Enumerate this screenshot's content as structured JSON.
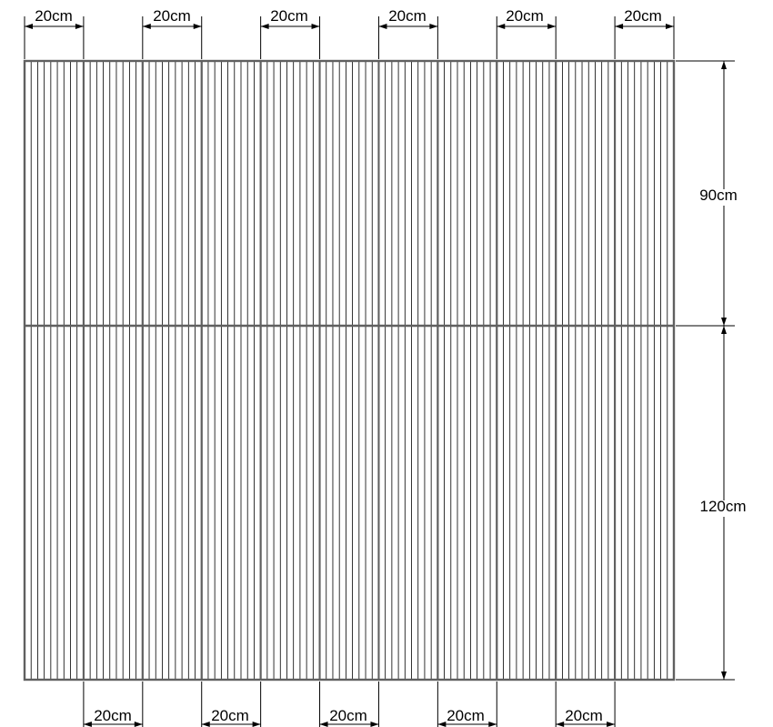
{
  "dimensions": {
    "top": [
      "20cm",
      "20cm",
      "20cm",
      "20cm",
      "20cm",
      "20cm"
    ],
    "bottom": [
      "20cm",
      "20cm",
      "20cm",
      "20cm",
      "20cm"
    ],
    "right_upper": "90cm",
    "right_lower": "120cm"
  },
  "panel_count": 11,
  "panel_rows": 2,
  "colors": {
    "panel_frame": "#606060",
    "hatch": "#000000",
    "dimension": "#000000"
  }
}
